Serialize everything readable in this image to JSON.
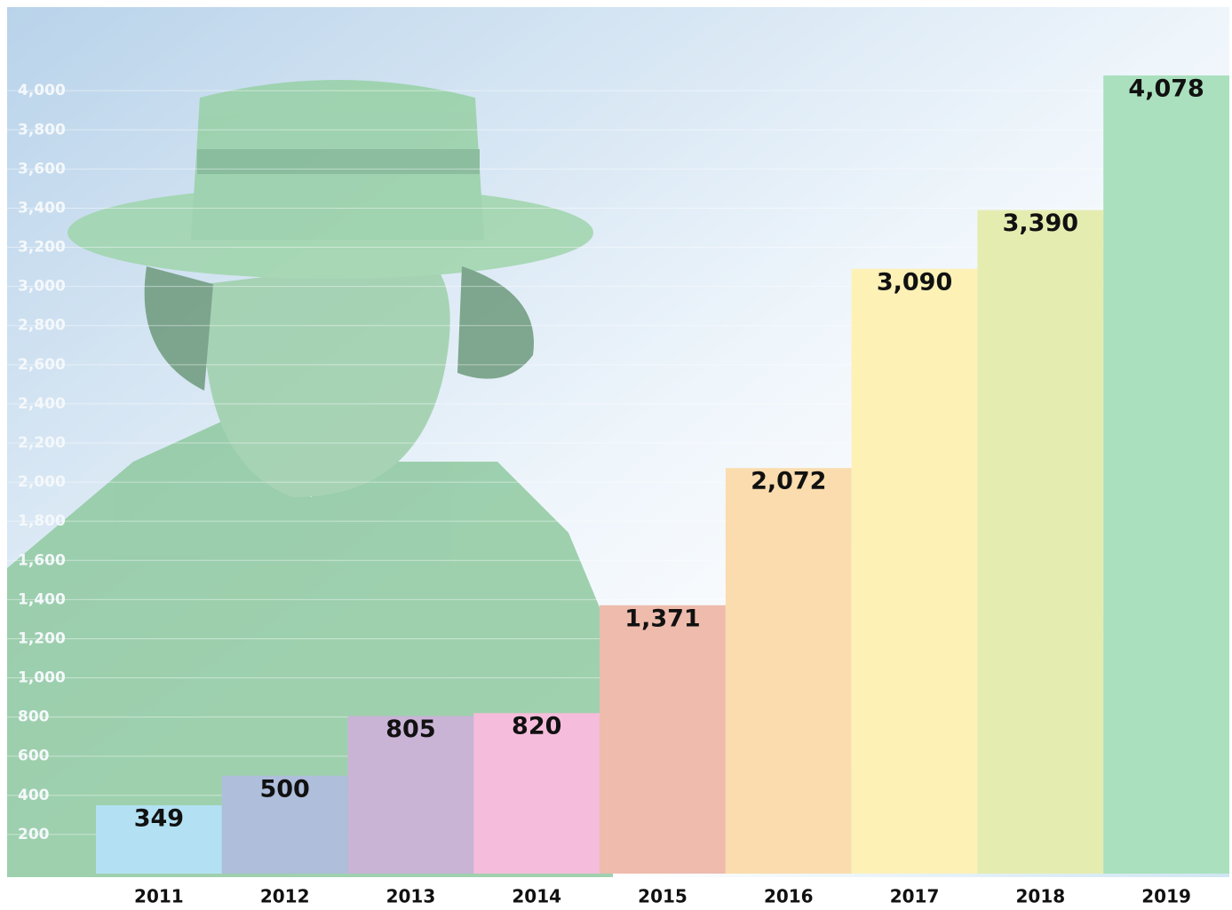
{
  "chart_data": {
    "type": "bar",
    "categories": [
      "2011",
      "2012",
      "2013",
      "2014",
      "2015",
      "2016",
      "2017",
      "2018",
      "2019"
    ],
    "values": [
      349,
      500,
      805,
      820,
      1371,
      2072,
      3090,
      3390,
      4078
    ],
    "value_labels": [
      "349",
      "500",
      "805",
      "820",
      "1,371",
      "2,072",
      "3,090",
      "3,390",
      "4,078"
    ],
    "colors": [
      "#b3e1f3",
      "#aebedb",
      "#c9b4d6",
      "#f6bcdb",
      "#eebbad",
      "#fbdcae",
      "#fdf1b6",
      "#e5ecb0",
      "#aae0be"
    ],
    "ylim": [
      0,
      4400
    ],
    "yticks": [
      200,
      400,
      600,
      800,
      {
        "value": 1000,
        "label": "1,000"
      },
      {
        "value": 1200,
        "label": "1,200"
      },
      {
        "value": 1400,
        "label": "1,400"
      },
      {
        "value": 1600,
        "label": "1,600"
      },
      {
        "value": 1800,
        "label": "1,800"
      },
      {
        "value": 2000,
        "label": "2,000"
      },
      {
        "value": 2200,
        "label": "2,200"
      },
      {
        "value": 2400,
        "label": "2,400"
      },
      {
        "value": 2600,
        "label": "2,600"
      },
      {
        "value": 2800,
        "label": "2,800"
      },
      {
        "value": 3000,
        "label": "3,000"
      },
      {
        "value": 3200,
        "label": "3,200"
      },
      {
        "value": 3400,
        "label": "3,400"
      },
      {
        "value": 3600,
        "label": "3,600"
      },
      {
        "value": 3800,
        "label": "3,800"
      },
      {
        "value": 4000,
        "label": "4,000"
      }
    ],
    "grid": true
  }
}
